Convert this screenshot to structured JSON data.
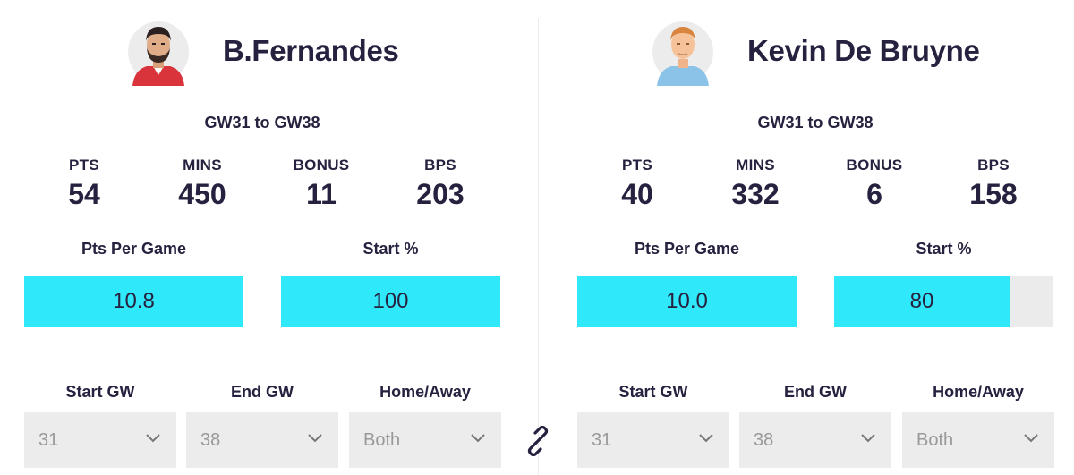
{
  "link_icon": "link-icon",
  "colors": {
    "bar_fill": "#2fe8f9",
    "bar_track": "#ebebeb",
    "text": "#26213f",
    "select_bg": "#ececec"
  },
  "players": [
    {
      "name": "B.Fernandes",
      "range": "GW31 to GW38",
      "stats": [
        {
          "label": "PTS",
          "value": "54"
        },
        {
          "label": "MINS",
          "value": "450"
        },
        {
          "label": "BONUS",
          "value": "11"
        },
        {
          "label": "BPS",
          "value": "203"
        }
      ],
      "metrics": [
        {
          "label": "Pts Per Game",
          "value": "10.8",
          "fill_percent": 100
        },
        {
          "label": "Start %",
          "value": "100",
          "fill_percent": 100
        }
      ],
      "filters": [
        {
          "label": "Start GW",
          "value": "31"
        },
        {
          "label": "End GW",
          "value": "38"
        },
        {
          "label": "Home/Away",
          "value": "Both"
        }
      ]
    },
    {
      "name": "Kevin De Bruyne",
      "range": "GW31 to GW38",
      "stats": [
        {
          "label": "PTS",
          "value": "40"
        },
        {
          "label": "MINS",
          "value": "332"
        },
        {
          "label": "BONUS",
          "value": "6"
        },
        {
          "label": "BPS",
          "value": "158"
        }
      ],
      "metrics": [
        {
          "label": "Pts Per Game",
          "value": "10.0",
          "fill_percent": 100
        },
        {
          "label": "Start %",
          "value": "80",
          "fill_percent": 80
        }
      ],
      "filters": [
        {
          "label": "Start GW",
          "value": "31"
        },
        {
          "label": "End GW",
          "value": "38"
        },
        {
          "label": "Home/Away",
          "value": "Both"
        }
      ]
    }
  ]
}
